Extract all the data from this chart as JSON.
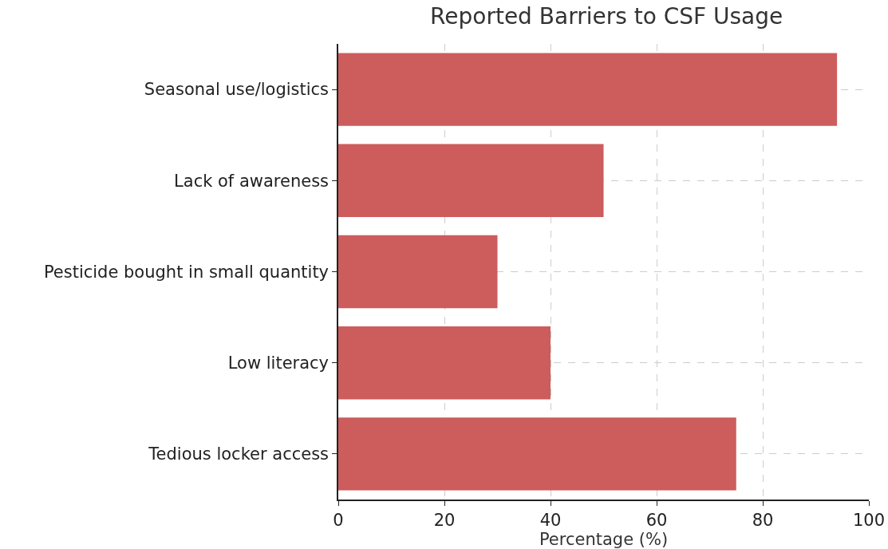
{
  "chart_data": {
    "type": "bar",
    "orientation": "horizontal",
    "title": "Reported Barriers to CSF Usage",
    "xlabel": "Percentage (%)",
    "categories": [
      "Seasonal use/logistics",
      "Lack of awareness",
      "Pesticide bought in small quantity",
      "Low literacy",
      "Tedious locker access"
    ],
    "values": [
      94,
      50,
      30,
      40,
      75
    ],
    "color": "#cd5c5c",
    "xlim": [
      0,
      100
    ],
    "xticks": [
      0,
      20,
      40,
      60,
      80,
      100
    ],
    "grid": true
  }
}
